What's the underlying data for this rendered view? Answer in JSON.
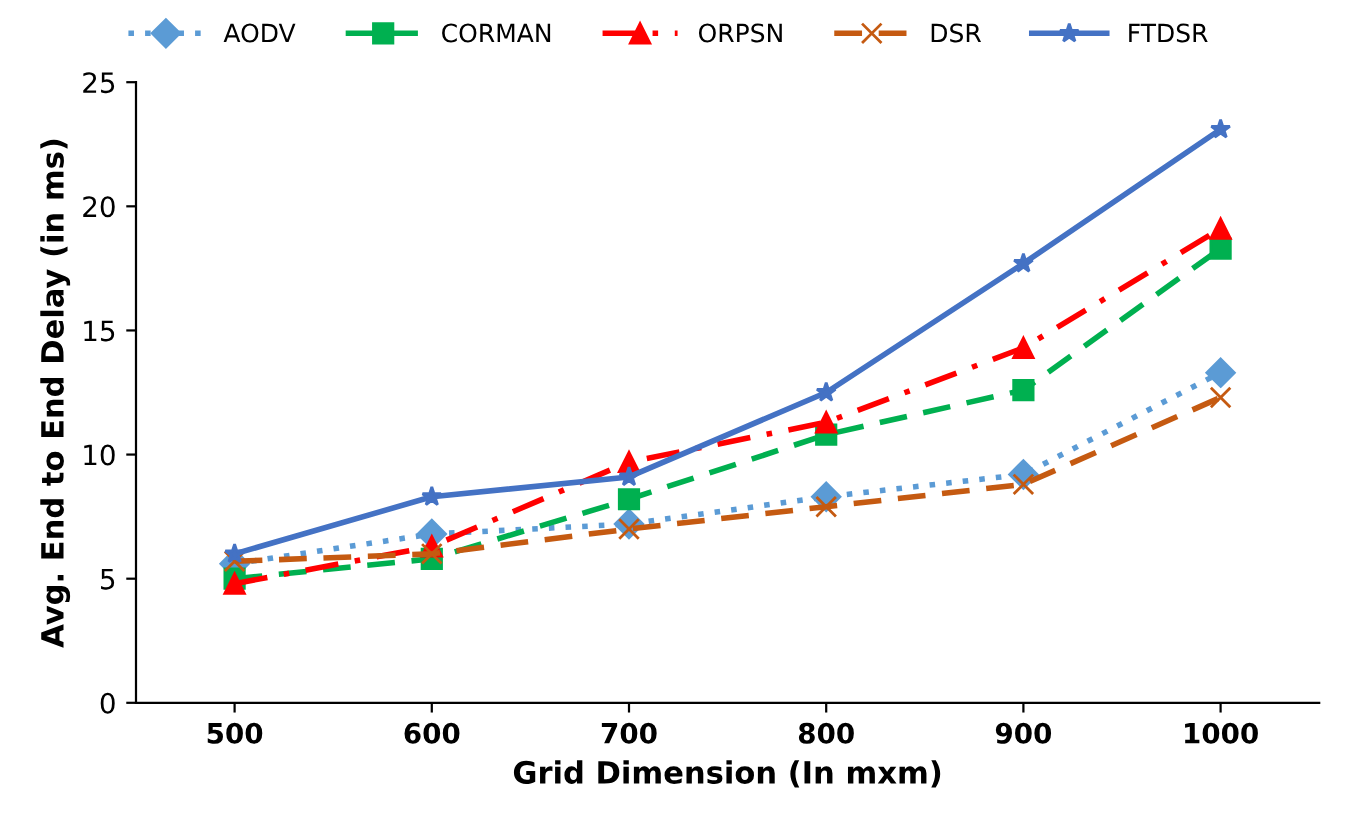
{
  "chart_data": {
    "type": "line",
    "xlabel": "Grid Dimension (In mxm)",
    "ylabel": "Avg. End to End Delay (in ms)",
    "categories": [
      "500",
      "600",
      "700",
      "800",
      "900",
      "1000"
    ],
    "series": [
      {
        "name": "AODV",
        "color": "#5b9bd5",
        "values": [
          5.6,
          6.8,
          7.2,
          8.3,
          9.2,
          13.3
        ],
        "marker": "diamond",
        "line_style": "dotted"
      },
      {
        "name": "CORMAN",
        "color": "#00b050",
        "values": [
          5.0,
          5.8,
          8.2,
          10.8,
          12.6,
          18.3
        ],
        "marker": "square",
        "line_style": "dashed"
      },
      {
        "name": "ORPSN",
        "color": "#ff0000",
        "values": [
          4.8,
          6.3,
          9.7,
          11.3,
          14.3,
          19.1
        ],
        "marker": "triangle",
        "line_style": "dashdot"
      },
      {
        "name": "DSR",
        "color": "#c55a11",
        "values": [
          5.7,
          6.0,
          7.0,
          7.9,
          8.8,
          12.3
        ],
        "marker": "cross",
        "line_style": "dashed"
      },
      {
        "name": "FTDSR",
        "color": "#4472c4",
        "values": [
          6.0,
          8.3,
          9.1,
          12.5,
          17.7,
          23.1
        ],
        "marker": "star",
        "line_style": "solid"
      }
    ],
    "ylim": [
      0,
      25
    ],
    "yticks": [
      0,
      5,
      10,
      15,
      20,
      25
    ],
    "grid": false,
    "legend": "top"
  }
}
